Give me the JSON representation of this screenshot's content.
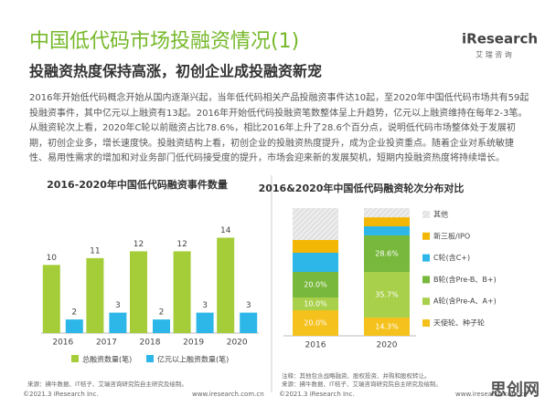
{
  "header": {
    "title": "中国低代码市场投融资情况(1)",
    "logo": "iResearch",
    "logo_sub": "艾 瑞 咨 询",
    "subtitle": "投融资热度保持高涨，初创企业成投融资新宠"
  },
  "body": "2016年开始低代码概念开始从国内逐渐兴起，当年低代码相关产品投融资事件达10起，至2020年中国低代码市场共有59起投融资事件，其中亿元以上融资有13起。2016年开始低代码投融资笔数整体呈上升趋势，亿元以上融资维持在每年2-3笔。从融资轮次上看，2020年C轮以前融资占比78.6%，相比2016年上升了28.6个百分点，说明低代码市场整体处于发展初期，初创企业多，增长速度快。投融资结构上看，初创企业的投融资热度提升，成为企业投资重点。随着企业对系统敏捷性、易用性需求的增加和对业务部门低代码接受度的提升，市场会迎来新的发展契机，短期内投融资热度将持续增长。",
  "chart_data": [
    {
      "type": "bar",
      "title": "2016-2020年中国低代码融资事件数量",
      "categories": [
        "2016",
        "2017",
        "2018",
        "2019",
        "2020"
      ],
      "series": [
        {
          "name": "总融资数量(笔)",
          "color": "#a5cd39",
          "values": [
            10,
            11,
            12,
            12,
            14
          ]
        },
        {
          "name": "亿元以上融资数量(笔)",
          "color": "#2db7e8",
          "values": [
            2,
            3,
            2,
            3,
            3
          ]
        }
      ],
      "ylim": [
        0,
        15
      ],
      "source": "来源：拂牛数据、IT桔子、艾瑞咨询研究院自主研究及绘制。"
    },
    {
      "type": "stacked_bar",
      "title": "2016&2020年中国低代码融资轮次分布对比",
      "categories": [
        "2016",
        "2020"
      ],
      "series": [
        {
          "name": "天使轮、种子轮",
          "color": "#f5c11c",
          "values": [
            20,
            14.3
          ],
          "value_labels": [
            "20.0%",
            "14.3%"
          ]
        },
        {
          "name": "A轮(含Pre-A、A+)",
          "color": "#a9d04b",
          "values": [
            10,
            35.7
          ],
          "value_labels": [
            "10.0%",
            "35.7%"
          ]
        },
        {
          "name": "B轮(含Pre-B、B+)",
          "color": "#78b83c",
          "values": [
            20,
            28.6
          ],
          "value_labels": [
            "20.0%",
            "28.6%"
          ]
        },
        {
          "name": "C轮(含C+)",
          "color": "#2db7e8",
          "values": [
            15,
            7.1
          ]
        },
        {
          "name": "新三板/IPO",
          "color": "#f2b705",
          "values": [
            10,
            7.1
          ]
        },
        {
          "name": "其他",
          "color": "#e4e4e4",
          "values": [
            25,
            7.2
          ]
        }
      ],
      "ylim": [
        0,
        100
      ],
      "note": "注释：其他包含战略融资、股权投资、并购和股权转让。",
      "source": "来源：拂牛数据、IT桔子、艾瑞咨询研究院自主研究及绘制。"
    }
  ],
  "footer": {
    "left": "©2021.3 iResearch Inc.",
    "left_url": "www.iresearch.com.cn",
    "right": "©2021.3 iResearch Inc.",
    "right_url": "www.iresearch.com.cn",
    "watermark": "思创网"
  }
}
